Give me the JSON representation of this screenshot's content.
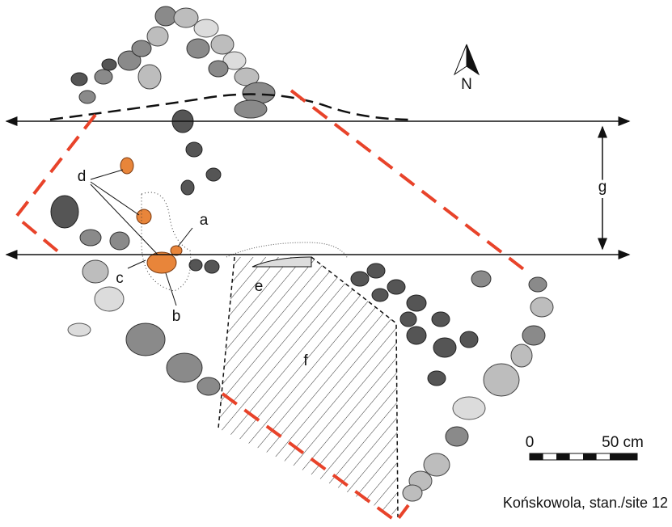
{
  "north": "N",
  "labels": [
    "a",
    "b",
    "c",
    "d",
    "e",
    "f",
    "g"
  ],
  "scale": {
    "start": "0",
    "end": "50 cm"
  },
  "caption": "Końskowola, stan./site 12"
}
